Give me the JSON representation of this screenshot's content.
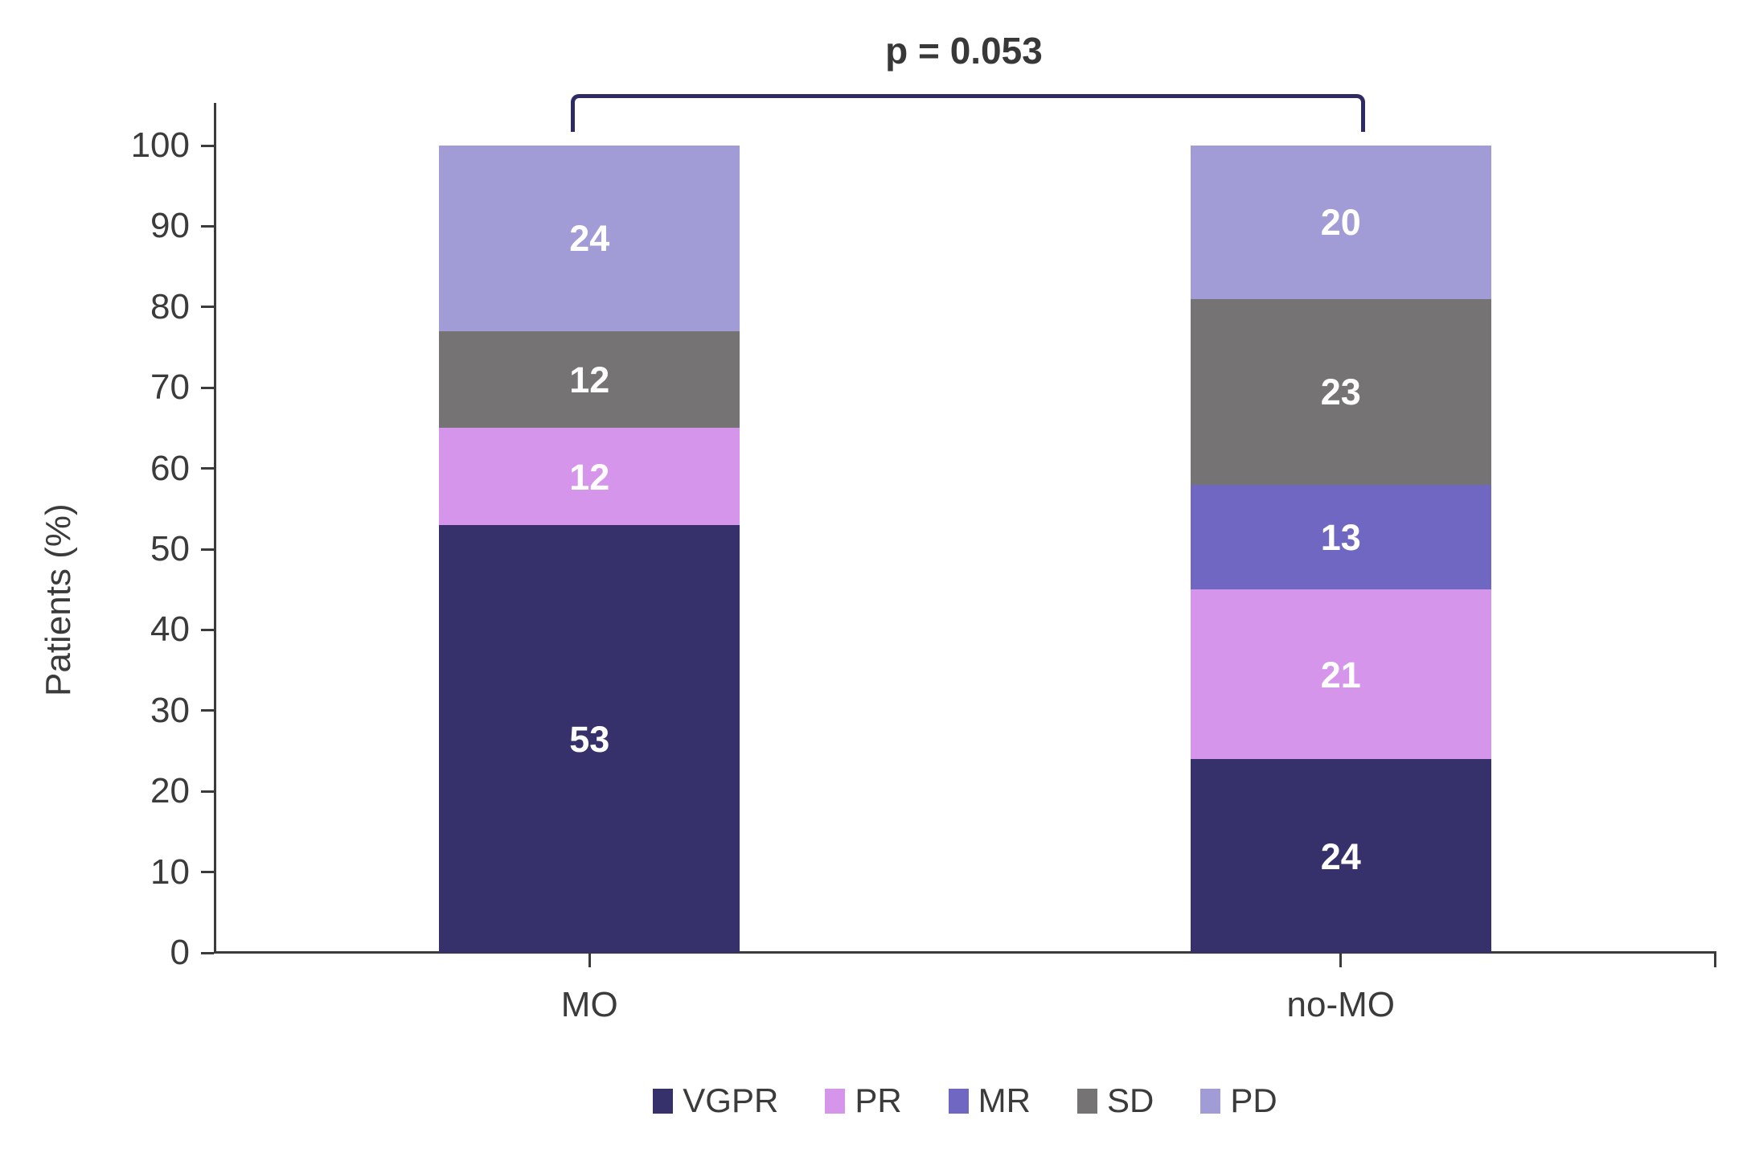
{
  "chart_data": {
    "type": "bar",
    "stacked": true,
    "p_annotation": "p = 0.053",
    "categories": [
      "MO",
      "no-MO"
    ],
    "series": [
      {
        "name": "VGPR",
        "color": "#36316a",
        "values": [
          53,
          24
        ]
      },
      {
        "name": "PR",
        "color": "#d595eb",
        "values": [
          12,
          21
        ]
      },
      {
        "name": "MR",
        "color": "#6f67c2",
        "values": [
          0,
          13
        ]
      },
      {
        "name": "SD",
        "color": "#757374",
        "values": [
          12,
          23
        ]
      },
      {
        "name": "PD",
        "color": "#a19cd6",
        "values": [
          24,
          20
        ]
      }
    ],
    "xlabel": "",
    "ylabel": "Patients (%)",
    "ylim": [
      0,
      100
    ],
    "yticks": [
      0,
      10,
      20,
      30,
      40,
      50,
      60,
      70,
      80,
      90,
      100
    ],
    "grid": false,
    "legend_position": "bottom",
    "value_labels_color": "#ffffff",
    "axis_color": "#3b3b3b",
    "bracket_color": "#2d2a64",
    "annotation_spans_categories": [
      "MO",
      "no-MO"
    ]
  }
}
